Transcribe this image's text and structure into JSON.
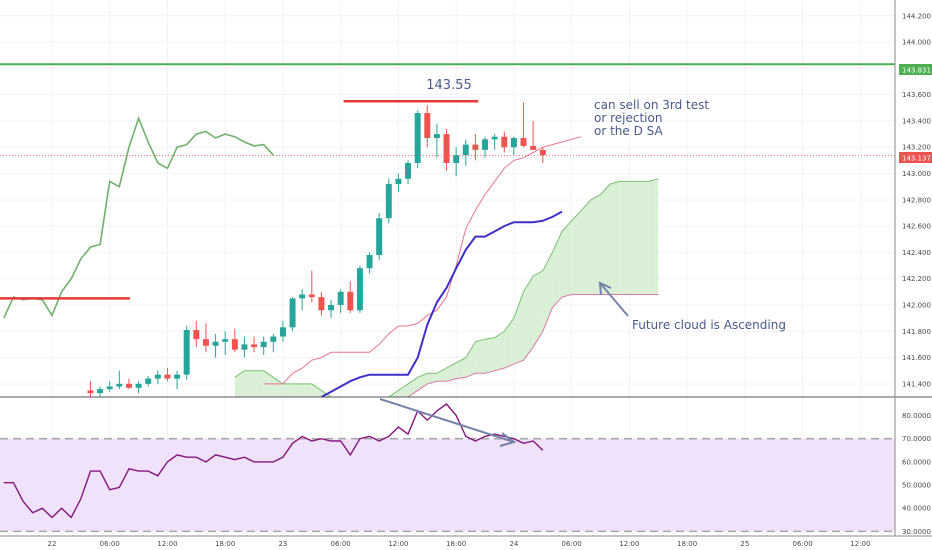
{
  "chart_data": {
    "type": "candlestick",
    "symbol_price_axis": {
      "ticks": [
        "144.200",
        "144.000",
        "143.800",
        "143.600",
        "143.400",
        "143.200",
        "143.000",
        "142.800",
        "142.600",
        "142.400",
        "142.200",
        "142.000",
        "141.800",
        "141.600",
        "141.400"
      ],
      "ylim": [
        141.3,
        144.32
      ]
    },
    "rsi_axis": {
      "ticks": [
        "80.0000",
        "70.0000",
        "60.0000",
        "50.0000",
        "40.0000",
        "30.0000"
      ],
      "ylim": [
        28,
        88
      ]
    },
    "time_axis": {
      "ticks": [
        {
          "label": "22",
          "pos": 0
        },
        {
          "label": "06:00",
          "pos": 6
        },
        {
          "label": "12:00",
          "pos": 12
        },
        {
          "label": "18:00",
          "pos": 18
        },
        {
          "label": "23",
          "pos": 24
        },
        {
          "label": "06:00",
          "pos": 30
        },
        {
          "label": "12:00",
          "pos": 36
        },
        {
          "label": "18:00",
          "pos": 42
        },
        {
          "label": "24",
          "pos": 48
        },
        {
          "label": "06:00",
          "pos": 54
        },
        {
          "label": "12:00",
          "pos": 60
        },
        {
          "label": "18:00",
          "pos": 66
        },
        {
          "label": "25",
          "pos": 72
        },
        {
          "label": "06:00",
          "pos": 78
        },
        {
          "label": "12:00",
          "pos": 84
        }
      ],
      "xlim": [
        -5.4,
        87.6
      ]
    },
    "candles_start": 4,
    "candles": [
      [
        141.35,
        141.42,
        141.3,
        141.33
      ],
      [
        141.33,
        141.38,
        141.3,
        141.36
      ],
      [
        141.36,
        141.42,
        141.34,
        141.38
      ],
      [
        141.38,
        141.5,
        141.36,
        141.4
      ],
      [
        141.4,
        141.44,
        141.36,
        141.37
      ],
      [
        141.37,
        141.42,
        141.33,
        141.4
      ],
      [
        141.4,
        141.46,
        141.38,
        141.44
      ],
      [
        141.44,
        141.5,
        141.4,
        141.47
      ],
      [
        141.47,
        141.52,
        141.42,
        141.44
      ],
      [
        141.44,
        141.5,
        141.36,
        141.47
      ],
      [
        141.47,
        141.84,
        141.43,
        141.81
      ],
      [
        141.81,
        141.88,
        141.68,
        141.74
      ],
      [
        141.74,
        141.86,
        141.64,
        141.69
      ],
      [
        141.69,
        141.78,
        141.6,
        141.72
      ],
      [
        141.72,
        141.8,
        141.62,
        141.74
      ],
      [
        141.74,
        141.82,
        141.64,
        141.66
      ],
      [
        141.66,
        141.76,
        141.6,
        141.7
      ],
      [
        141.7,
        141.76,
        141.64,
        141.68
      ],
      [
        141.68,
        141.76,
        141.62,
        141.72
      ],
      [
        141.72,
        141.78,
        141.64,
        141.76
      ],
      [
        141.76,
        141.88,
        141.72,
        141.83
      ],
      [
        141.83,
        142.06,
        141.8,
        142.05
      ],
      [
        142.05,
        142.12,
        141.96,
        142.08
      ],
      [
        142.08,
        142.26,
        142.02,
        142.06
      ],
      [
        142.06,
        142.1,
        141.92,
        141.96
      ],
      [
        141.96,
        142.04,
        141.9,
        142.0
      ],
      [
        142.0,
        142.12,
        141.94,
        142.1
      ],
      [
        142.1,
        142.18,
        141.94,
        141.96
      ],
      [
        141.96,
        142.3,
        141.94,
        142.28
      ],
      [
        142.28,
        142.4,
        142.24,
        142.38
      ],
      [
        142.38,
        142.7,
        142.34,
        142.66
      ],
      [
        142.66,
        142.96,
        142.62,
        142.92
      ],
      [
        142.92,
        143.0,
        142.86,
        142.96
      ],
      [
        142.96,
        143.1,
        142.92,
        143.08
      ],
      [
        143.08,
        143.48,
        143.04,
        143.46
      ],
      [
        143.46,
        143.52,
        143.2,
        143.27
      ],
      [
        143.27,
        143.38,
        143.12,
        143.3
      ],
      [
        143.3,
        143.34,
        143.02,
        143.08
      ],
      [
        143.08,
        143.2,
        142.98,
        143.14
      ],
      [
        143.14,
        143.26,
        143.06,
        143.22
      ],
      [
        143.22,
        143.3,
        143.1,
        143.18
      ],
      [
        143.18,
        143.28,
        143.12,
        143.26
      ],
      [
        143.26,
        143.3,
        143.18,
        143.28
      ],
      [
        143.28,
        143.32,
        143.16,
        143.2
      ],
      [
        143.2,
        143.28,
        143.14,
        143.27
      ],
      [
        143.27,
        143.54,
        143.2,
        143.21
      ],
      [
        143.21,
        143.4,
        143.18,
        143.18
      ],
      [
        143.18,
        143.2,
        143.08,
        143.14
      ]
    ],
    "kijun_start": 28,
    "kijun": [
      141.3,
      141.34,
      141.38,
      141.42,
      141.45,
      141.47,
      141.47,
      141.47,
      141.47,
      141.47,
      141.6,
      141.85,
      142.02,
      142.13,
      142.28,
      142.42,
      142.52,
      142.52,
      142.56,
      142.6,
      142.63,
      142.63,
      142.63,
      142.64,
      142.67,
      142.71
    ],
    "tenkan_start": 22,
    "tenkan": [
      141.4,
      141.4,
      141.4,
      141.48,
      141.52,
      141.58,
      141.6,
      141.64,
      141.64,
      141.64,
      141.64,
      141.64,
      141.7,
      141.78,
      141.84,
      141.84,
      141.86,
      141.92,
      141.96,
      142.06,
      142.3,
      142.58,
      142.72,
      142.84,
      142.94,
      143.04,
      143.1,
      143.12,
      143.16,
      143.2,
      143.22,
      143.24,
      143.26,
      143.28
    ],
    "chikou_start": -5,
    "chikou": [
      141.9,
      142.06,
      142.04,
      142.05,
      142.04,
      141.92,
      142.1,
      142.2,
      142.35,
      142.44,
      142.46,
      142.94,
      142.9,
      143.2,
      143.42,
      143.24,
      143.08,
      143.04,
      143.2,
      143.22,
      143.3,
      143.32,
      143.27,
      143.3,
      143.28,
      143.24,
      143.21,
      143.22,
      143.14
    ],
    "span_a_start": 19,
    "span_a": [
      141.45,
      141.5,
      141.5,
      141.5,
      141.45,
      141.4,
      141.4,
      141.4,
      141.4,
      141.35,
      141.3,
      141.3,
      141.28,
      141.28,
      141.28,
      141.28,
      141.3,
      141.35,
      141.4,
      141.45,
      141.48,
      141.48,
      141.52,
      141.56,
      141.6,
      141.72,
      141.74,
      141.75,
      141.8,
      141.9,
      142.1,
      142.22,
      142.26,
      142.4,
      142.56,
      142.64,
      142.72,
      142.8,
      142.84,
      142.92,
      142.94,
      142.94,
      142.94,
      142.94,
      142.96
    ],
    "span_b_start": 19,
    "span_b": [
      141.3,
      141.3,
      141.3,
      141.3,
      141.3,
      141.3,
      141.3,
      141.3,
      141.3,
      141.3,
      141.3,
      141.3,
      141.3,
      141.3,
      141.3,
      141.3,
      141.3,
      141.3,
      141.3,
      141.35,
      141.4,
      141.42,
      141.42,
      141.44,
      141.45,
      141.48,
      141.48,
      141.5,
      141.52,
      141.55,
      141.58,
      141.68,
      141.8,
      141.98,
      142.06,
      142.08,
      142.08,
      142.08,
      142.08,
      142.08,
      142.08,
      142.08,
      142.08,
      142.08,
      142.08
    ],
    "rsi_start": -5,
    "rsi": [
      51,
      51,
      43,
      38,
      40,
      36,
      40,
      36,
      44,
      56,
      56,
      48,
      49,
      57,
      56,
      56,
      54,
      60,
      63,
      62,
      62,
      60,
      63,
      62,
      61,
      62,
      60,
      60,
      60,
      62,
      68,
      71,
      69,
      70,
      69,
      69,
      63,
      70,
      71,
      69,
      71,
      75,
      72,
      82,
      78,
      82,
      85,
      80,
      71,
      69,
      71,
      72,
      71,
      70,
      68,
      69,
      65
    ],
    "rsi_dashed_levels": [
      70,
      30
    ],
    "red_level_left": {
      "price": 142.05,
      "x0": -5.4,
      "x1": 8.1
    },
    "resistance_line": {
      "price": 143.55,
      "x0": 30.3,
      "x1": 44.3
    },
    "green_level": {
      "price": 143.831
    },
    "current_price": 143.137,
    "price_labels": {
      "green": "143.831",
      "current": "143.137"
    },
    "price_annotation": "143.55",
    "annotation_note": [
      "can sell on 3rd test",
      "or rejection",
      "or the D SA"
    ],
    "cloud_note": "Future cloud is Ascending",
    "colors": {
      "bull": "#26a69a",
      "bear": "#ef5350",
      "kijun": "#3f2fc8",
      "tenkan": "#e8768f",
      "chikou": "#6fb16a",
      "cloud_bull": "#d9f0d6",
      "cloud_bear": "#f8d3d6",
      "span_a": "#79c06f",
      "span_b": "#d87aa0",
      "rsi_line": "#85177e",
      "rsi_band": "#f1e2fb",
      "level_red": "#e53935",
      "level_green": "#4caf50",
      "arrow": "#7583a8",
      "annotation_text": "#4a5a8a"
    }
  }
}
